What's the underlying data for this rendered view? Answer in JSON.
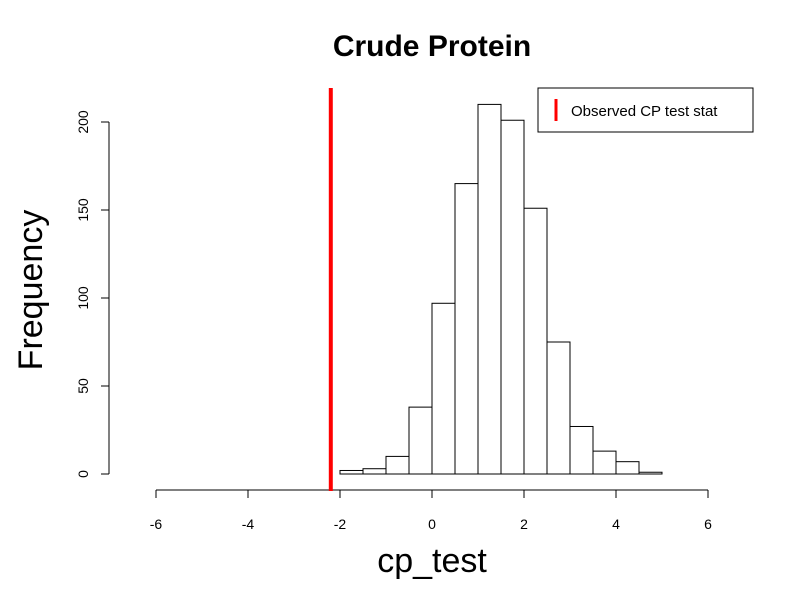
{
  "chart_data": {
    "type": "bar",
    "title": "Crude Protein",
    "xlabel": "cp_test",
    "ylabel": "Frequency",
    "xlim": [
      -6,
      6
    ],
    "ylim": [
      0,
      210
    ],
    "xticks": [
      -6,
      -4,
      -2,
      0,
      2,
      4,
      6
    ],
    "yticks": [
      0,
      50,
      100,
      150,
      200
    ],
    "bin_width": 0.5,
    "bins": [
      {
        "start": -2.0,
        "end": -1.5,
        "count": 2
      },
      {
        "start": -1.5,
        "end": -1.0,
        "count": 3
      },
      {
        "start": -1.0,
        "end": -0.5,
        "count": 10
      },
      {
        "start": -0.5,
        "end": 0.0,
        "count": 38
      },
      {
        "start": 0.0,
        "end": 0.5,
        "count": 97
      },
      {
        "start": 0.5,
        "end": 1.0,
        "count": 165
      },
      {
        "start": 1.0,
        "end": 1.5,
        "count": 210
      },
      {
        "start": 1.5,
        "end": 2.0,
        "count": 201
      },
      {
        "start": 2.0,
        "end": 2.5,
        "count": 151
      },
      {
        "start": 2.5,
        "end": 3.0,
        "count": 75
      },
      {
        "start": 3.0,
        "end": 3.5,
        "count": 27
      },
      {
        "start": 3.5,
        "end": 4.0,
        "count": 13
      },
      {
        "start": 4.0,
        "end": 4.5,
        "count": 7
      },
      {
        "start": 4.5,
        "end": 5.0,
        "count": 1
      }
    ],
    "reference_line": {
      "x": -2.2,
      "label": "Observed CP test stat",
      "color": "#ff0000"
    },
    "legend": {
      "position": "top-right",
      "entries": [
        "Observed CP test stat"
      ]
    },
    "grid": false,
    "bar_fill": "#ffffff",
    "bar_stroke": "#000000"
  }
}
